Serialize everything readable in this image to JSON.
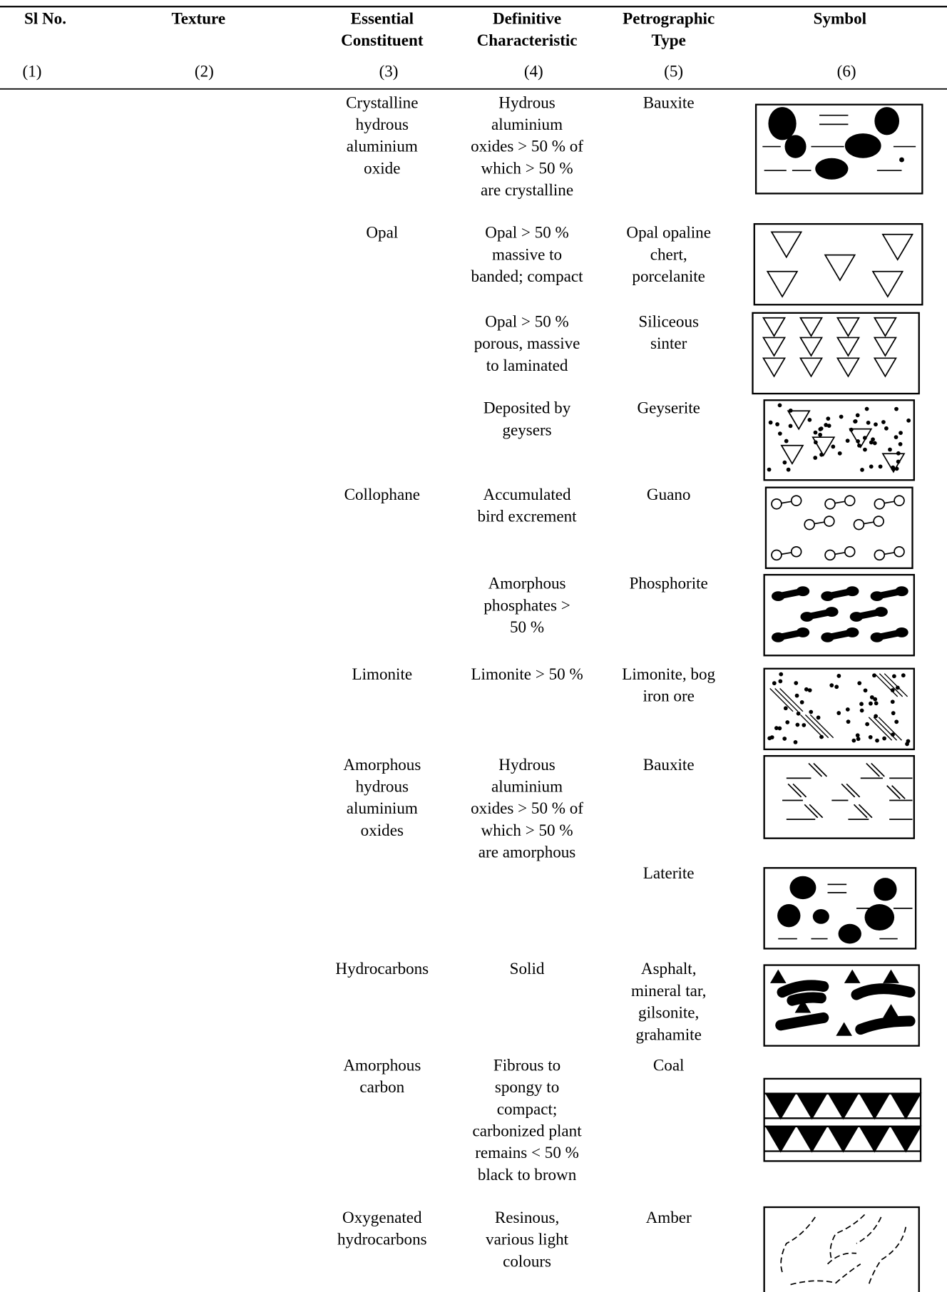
{
  "header": {
    "columns": [
      [
        "Sl No."
      ],
      [
        "Texture"
      ],
      [
        "Essential",
        "Constituent"
      ],
      [
        "Definitive",
        "Characteristic"
      ],
      [
        "Petrographic",
        "Type"
      ],
      [
        "Symbol"
      ]
    ],
    "numbers": [
      "(1)",
      "(2)",
      "(3)",
      "(4)",
      "(5)",
      "(6)"
    ]
  },
  "rows": [
    {
      "constituent": [
        "Crystalline",
        "hydrous",
        "aluminium",
        "oxide"
      ],
      "characteristic": [
        "Hydrous",
        "aluminium",
        "oxides > 50 % of",
        "which > 50 %",
        "are crystalline"
      ],
      "type": [
        "Bauxite"
      ]
    },
    {
      "constituent": [
        "Opal"
      ],
      "characteristic": [
        "Opal > 50 %",
        "massive to",
        "banded; compact"
      ],
      "type": [
        "Opal opaline",
        "chert,",
        "porcelanite"
      ]
    },
    {
      "characteristic": [
        "Opal > 50 %",
        "porous, massive",
        "to laminated"
      ],
      "type": [
        "Siliceous",
        "sinter"
      ]
    },
    {
      "characteristic": [
        "Deposited by",
        "geysers"
      ],
      "type": [
        "Geyserite"
      ]
    },
    {
      "constituent": [
        "Collophane"
      ],
      "characteristic": [
        "Accumulated",
        "bird excrement"
      ],
      "type": [
        "Guano"
      ]
    },
    {
      "characteristic": [
        "Amorphous",
        "phosphates >",
        "50 %"
      ],
      "type": [
        "Phosphorite"
      ]
    },
    {
      "constituent": [
        "Limonite"
      ],
      "characteristic": [
        "Limonite > 50 %"
      ],
      "type": [
        "Limonite, bog",
        "iron ore"
      ]
    },
    {
      "constituent": [
        "Amorphous",
        "hydrous",
        "aluminium",
        "oxides"
      ],
      "characteristic": [
        "Hydrous",
        "aluminium",
        "oxides > 50 % of",
        "which > 50 %",
        "are amorphous"
      ],
      "type": [
        "Bauxite"
      ]
    },
    {
      "type": [
        "Laterite"
      ]
    },
    {
      "constituent": [
        "Hydrocarbons"
      ],
      "characteristic": [
        "Solid"
      ],
      "type": [
        "Asphalt,",
        "mineral tar,",
        "gilsonite,",
        "grahamite"
      ]
    },
    {
      "constituent": [
        "Amorphous",
        "carbon"
      ],
      "characteristic": [
        "Fibrous to",
        "spongy to",
        "compact;",
        "carbonized plant",
        "remains < 50 %",
        "black to brown"
      ],
      "type": [
        "Coal"
      ]
    },
    {
      "constituent": [
        "Oxygenated",
        "hydrocarbons"
      ],
      "characteristic": [
        "Resinous,",
        "various light",
        "colours"
      ],
      "type": [
        "Amber"
      ]
    }
  ]
}
